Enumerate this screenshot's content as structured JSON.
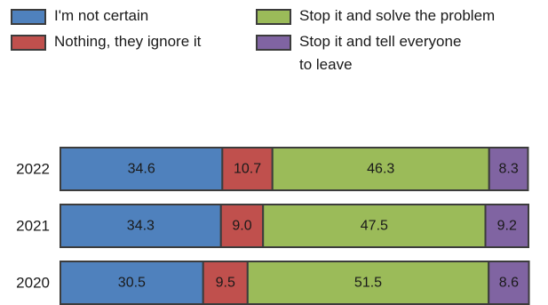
{
  "chart_data": {
    "type": "bar",
    "orientation": "horizontal",
    "stacked": true,
    "categories": [
      "2022",
      "2021",
      "2020"
    ],
    "series": [
      {
        "name": "I'm not certain",
        "color": "#4f81bd",
        "values": [
          34.6,
          34.3,
          30.5
        ]
      },
      {
        "name": "Nothing, they ignore it",
        "color": "#c0504d",
        "values": [
          10.7,
          9.0,
          9.5
        ]
      },
      {
        "name": "Stop it and solve the problem",
        "color": "#9bbb59",
        "values": [
          46.3,
          47.5,
          51.5
        ]
      },
      {
        "name": "Stop it and tell everyone\nto leave",
        "color": "#8064a2",
        "values": [
          8.3,
          9.2,
          8.6
        ]
      }
    ],
    "xlim": [
      0,
      100
    ],
    "legend_position": "top",
    "grid": false,
    "title": "",
    "xlabel": "",
    "ylabel": ""
  }
}
